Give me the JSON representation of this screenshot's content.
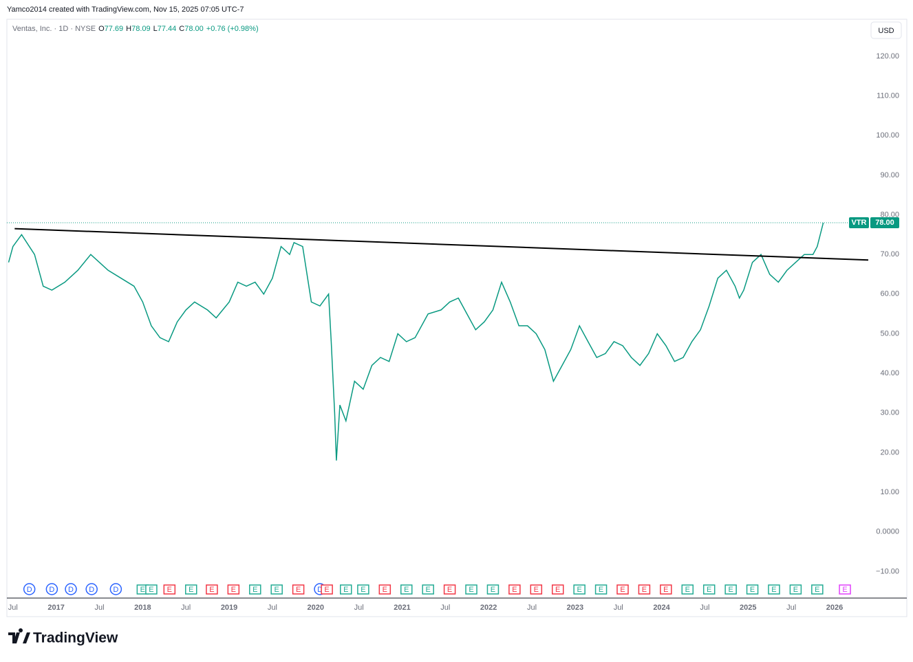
{
  "header": {
    "credit": "Yamco2014 created with TradingView.com, Nov 15, 2025 07:05 UTC-7",
    "currency": "USD",
    "logo": "TradingView"
  },
  "chart_data": {
    "type": "line",
    "legend": {
      "symbol": "Ventas, Inc. · 1D · NYSE",
      "open_label": "O",
      "open": "77.69",
      "high_label": "H",
      "high": "78.09",
      "low_label": "L",
      "low": "77.44",
      "close_label": "C",
      "close": "78.00",
      "change": "+0.76 (+0.98%)"
    },
    "x": [
      2016.45,
      2016.5,
      2016.6,
      2016.75,
      2016.85,
      2016.95,
      2017.1,
      2017.25,
      2017.4,
      2017.5,
      2017.6,
      2017.75,
      2017.9,
      2018.0,
      2018.1,
      2018.2,
      2018.3,
      2018.4,
      2018.5,
      2018.6,
      2018.75,
      2018.85,
      2019.0,
      2019.1,
      2019.2,
      2019.3,
      2019.4,
      2019.5,
      2019.6,
      2019.7,
      2019.75,
      2019.85,
      2019.95,
      2020.05,
      2020.15,
      2020.18,
      2020.22,
      2020.24,
      2020.28,
      2020.35,
      2020.45,
      2020.55,
      2020.65,
      2020.75,
      2020.85,
      2020.95,
      2021.05,
      2021.15,
      2021.3,
      2021.45,
      2021.55,
      2021.65,
      2021.75,
      2021.85,
      2021.95,
      2022.05,
      2022.15,
      2022.25,
      2022.35,
      2022.45,
      2022.55,
      2022.65,
      2022.75,
      2022.85,
      2022.95,
      2023.05,
      2023.15,
      2023.25,
      2023.35,
      2023.45,
      2023.55,
      2023.65,
      2023.75,
      2023.85,
      2023.95,
      2024.05,
      2024.15,
      2024.25,
      2024.35,
      2024.45,
      2024.55,
      2024.65,
      2024.75,
      2024.85,
      2024.9,
      2024.95,
      2025.05,
      2025.15,
      2025.25,
      2025.35,
      2025.45,
      2025.55,
      2025.65,
      2025.75,
      2025.8,
      2025.87
    ],
    "series": [
      {
        "name": "VTR",
        "color": "#089981",
        "values": [
          68,
          72,
          75,
          70,
          62,
          61,
          63,
          66,
          70,
          68,
          66,
          64,
          62,
          58,
          52,
          49,
          48,
          53,
          56,
          58,
          56,
          54,
          58,
          63,
          62,
          63,
          60,
          64,
          72,
          70,
          73,
          72,
          58,
          57,
          60,
          48,
          30,
          18,
          32,
          28,
          38,
          36,
          42,
          44,
          43,
          50,
          48,
          49,
          55,
          56,
          58,
          59,
          55,
          51,
          53,
          56,
          63,
          58,
          52,
          52,
          50,
          46,
          38,
          42,
          46,
          52,
          48,
          44,
          45,
          48,
          47,
          44,
          42,
          45,
          50,
          47,
          43,
          44,
          48,
          51,
          57,
          64,
          66,
          62,
          59,
          61,
          68,
          70,
          65,
          63,
          66,
          68,
          70,
          70,
          72,
          78
        ]
      }
    ],
    "trendline": {
      "x": [
        2016.52,
        2026.39
      ],
      "y": [
        76.5,
        68.6
      ],
      "color": "#000000"
    },
    "last_price": {
      "symbol": "VTR",
      "value": 78,
      "label": "78.00",
      "color": "#089981"
    },
    "xlim": [
      2016.43,
      2026.39
    ],
    "ylim": [
      -16.7,
      129
    ],
    "xticks": [
      {
        "value": 2016.5,
        "label": "Jul"
      },
      2017,
      {
        "value": 2017.5,
        "label": "Jul"
      },
      2018,
      {
        "value": 2018.5,
        "label": "Jul"
      },
      2019,
      {
        "value": 2019.5,
        "label": "Jul"
      },
      2020,
      {
        "value": 2020.5,
        "label": "Jul"
      },
      2021,
      {
        "value": 2021.5,
        "label": "Jul"
      },
      2022,
      {
        "value": 2022.5,
        "label": "Jul"
      },
      2023,
      {
        "value": 2023.5,
        "label": "Jul"
      },
      2024,
      {
        "value": 2024.5,
        "label": "Jul"
      },
      2025,
      {
        "value": 2025.5,
        "label": "Jul"
      },
      2026
    ],
    "yticks": [
      {
        "value": 120,
        "label": "120.00"
      },
      {
        "value": 110,
        "label": "110.00"
      },
      {
        "value": 100,
        "label": "100.00"
      },
      {
        "value": 90,
        "label": "90.00"
      },
      {
        "value": 80,
        "label": "80.00"
      },
      {
        "value": 70,
        "label": "70.00"
      },
      {
        "value": 60,
        "label": "60.00"
      },
      {
        "value": 50,
        "label": "50.00"
      },
      {
        "value": 40,
        "label": "40.00"
      },
      {
        "value": 30,
        "label": "30.00"
      },
      {
        "value": 20,
        "label": "20.00"
      },
      {
        "value": 10,
        "label": "10.00"
      },
      {
        "value": 0,
        "label": "0.0000"
      },
      {
        "value": -10,
        "label": "−10.00"
      }
    ],
    "grid": false,
    "events": [
      {
        "x": 2016.69,
        "label": "D",
        "color": "#2962ff"
      },
      {
        "x": 2016.95,
        "label": "D",
        "color": "#2962ff"
      },
      {
        "x": 2017.17,
        "label": "D",
        "color": "#2962ff"
      },
      {
        "x": 2017.41,
        "label": "D",
        "color": "#2962ff"
      },
      {
        "x": 2017.69,
        "label": "D",
        "color": "#2962ff"
      },
      {
        "x": 2018.0,
        "label": "E",
        "color": "#22ab94"
      },
      {
        "x": 2018.1,
        "label": "E",
        "color": "#22ab94"
      },
      {
        "x": 2018.31,
        "label": "E",
        "color": "#f23645"
      },
      {
        "x": 2018.56,
        "label": "E",
        "color": "#22ab94"
      },
      {
        "x": 2018.8,
        "label": "E",
        "color": "#f23645"
      },
      {
        "x": 2019.05,
        "label": "E",
        "color": "#f23645"
      },
      {
        "x": 2019.3,
        "label": "E",
        "color": "#22ab94"
      },
      {
        "x": 2019.55,
        "label": "E",
        "color": "#22ab94"
      },
      {
        "x": 2019.8,
        "label": "E",
        "color": "#f23645"
      },
      {
        "x": 2020.05,
        "label": "D",
        "color": "#2962ff"
      },
      {
        "x": 2020.13,
        "label": "E",
        "color": "#f23645"
      },
      {
        "x": 2020.35,
        "label": "E",
        "color": "#22ab94"
      },
      {
        "x": 2020.55,
        "label": "E",
        "color": "#22ab94"
      },
      {
        "x": 2020.8,
        "label": "E",
        "color": "#f23645"
      },
      {
        "x": 2021.05,
        "label": "E",
        "color": "#22ab94"
      },
      {
        "x": 2021.3,
        "label": "E",
        "color": "#22ab94"
      },
      {
        "x": 2021.55,
        "label": "E",
        "color": "#f23645"
      },
      {
        "x": 2021.8,
        "label": "E",
        "color": "#22ab94"
      },
      {
        "x": 2022.05,
        "label": "E",
        "color": "#22ab94"
      },
      {
        "x": 2022.3,
        "label": "E",
        "color": "#f23645"
      },
      {
        "x": 2022.55,
        "label": "E",
        "color": "#f23645"
      },
      {
        "x": 2022.8,
        "label": "E",
        "color": "#f23645"
      },
      {
        "x": 2023.05,
        "label": "E",
        "color": "#22ab94"
      },
      {
        "x": 2023.3,
        "label": "E",
        "color": "#22ab94"
      },
      {
        "x": 2023.55,
        "label": "E",
        "color": "#f23645"
      },
      {
        "x": 2023.8,
        "label": "E",
        "color": "#f23645"
      },
      {
        "x": 2024.05,
        "label": "E",
        "color": "#f23645"
      },
      {
        "x": 2024.3,
        "label": "E",
        "color": "#22ab94"
      },
      {
        "x": 2024.55,
        "label": "E",
        "color": "#22ab94"
      },
      {
        "x": 2024.8,
        "label": "E",
        "color": "#22ab94"
      },
      {
        "x": 2025.05,
        "label": "E",
        "color": "#22ab94"
      },
      {
        "x": 2025.3,
        "label": "E",
        "color": "#22ab94"
      },
      {
        "x": 2025.55,
        "label": "E",
        "color": "#22ab94"
      },
      {
        "x": 2025.8,
        "label": "E",
        "color": "#22ab94"
      },
      {
        "x": 2026.12,
        "label": "E",
        "color": "#e040fb"
      }
    ]
  }
}
